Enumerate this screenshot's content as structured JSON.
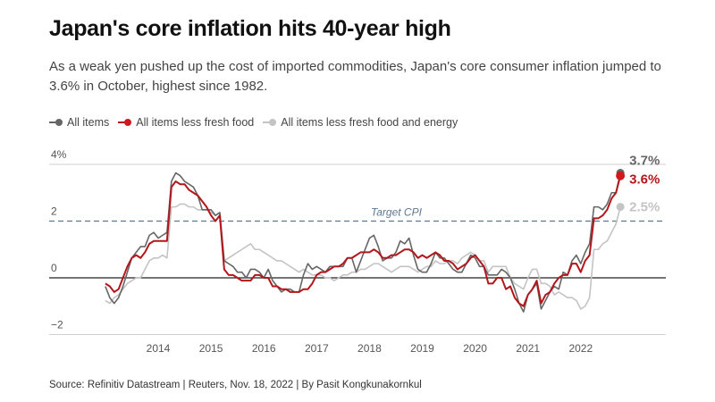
{
  "header": {
    "title": "Japan's core inflation hits 40-year high",
    "subtitle": "As a weak yen pushed up the cost of imported commodities, Japan's core consumer inflation jumped to 3.6% in October, highest since 1982."
  },
  "footer": {
    "source": "Source: Refinitiv Datastream | Reuters, Nov. 18, 2022 | By Pasit Kongkunakornkul"
  },
  "chart_data": {
    "type": "line",
    "title": "Japan's core inflation hits 40-year high",
    "xlabel": "",
    "ylabel": "",
    "x_start": "2013-01",
    "x_end": "2022-10",
    "x_frequency": "monthly",
    "xlim": [
      2013,
      2023.4
    ],
    "ylim": [
      -2,
      4
    ],
    "grid": true,
    "legend_position": "top-left",
    "y_ticks": [
      {
        "value": 4,
        "label": "4%"
      },
      {
        "value": 2,
        "label": "2"
      },
      {
        "value": 0,
        "label": "0"
      },
      {
        "value": -2,
        "label": "−2"
      }
    ],
    "x_ticks": [
      "2014",
      "2015",
      "2016",
      "2017",
      "2018",
      "2019",
      "2020",
      "2021",
      "2022"
    ],
    "reference_line": {
      "value": 2,
      "label": "Target CPI",
      "color": "#5d7891"
    },
    "series": [
      {
        "name": "All items less fresh food and energy",
        "color": "#c4c4c4",
        "end_label": "2.5%",
        "values": [
          -0.8,
          -0.9,
          -0.7,
          -0.6,
          -0.4,
          -0.2,
          -0.1,
          0.0,
          0.0,
          0.3,
          0.6,
          0.7,
          0.7,
          0.8,
          0.7,
          2.5,
          2.5,
          2.6,
          2.6,
          2.5,
          2.5,
          2.4,
          2.4,
          2.4,
          2.3,
          2.2,
          2.3,
          0.6,
          0.7,
          0.8,
          0.9,
          1.0,
          1.1,
          1.2,
          1.0,
          1.0,
          0.9,
          0.8,
          0.7,
          0.6,
          0.6,
          0.5,
          0.4,
          0.3,
          0.2,
          0.3,
          0.2,
          0.1,
          0.1,
          0.1,
          0.0,
          0.0,
          -0.1,
          0.0,
          0.1,
          0.1,
          0.2,
          0.2,
          0.3,
          0.3,
          0.4,
          0.5,
          0.5,
          0.4,
          0.3,
          0.2,
          0.3,
          0.4,
          0.4,
          0.4,
          0.3,
          0.2,
          0.3,
          0.4,
          0.4,
          0.6,
          0.5,
          0.5,
          0.6,
          0.6,
          0.5,
          0.7,
          0.8,
          0.9,
          0.8,
          0.6,
          0.6,
          0.2,
          0.4,
          0.4,
          0.4,
          0.4,
          0.0,
          -0.2,
          -0.3,
          -0.4,
          0.0,
          0.3,
          0.3,
          -0.2,
          -0.2,
          -0.3,
          -0.6,
          -0.5,
          -0.6,
          -0.7,
          -0.7,
          -0.8,
          -1.1,
          -1.0,
          -0.7,
          1.0,
          1.0,
          1.2,
          1.3,
          1.6,
          1.9,
          2.5
        ]
      },
      {
        "name": "All items",
        "color": "#666666",
        "end_label": "3.7%",
        "values": [
          -0.3,
          -0.7,
          -0.9,
          -0.7,
          -0.3,
          0.2,
          0.7,
          0.9,
          1.1,
          1.1,
          1.5,
          1.6,
          1.4,
          1.5,
          1.6,
          3.4,
          3.7,
          3.6,
          3.4,
          3.3,
          3.2,
          2.9,
          2.4,
          2.4,
          2.4,
          2.2,
          2.3,
          0.6,
          0.5,
          0.4,
          0.2,
          0.2,
          0.0,
          0.3,
          0.3,
          0.2,
          0.0,
          0.3,
          -0.1,
          -0.3,
          -0.5,
          -0.4,
          -0.4,
          -0.5,
          -0.5,
          0.1,
          0.5,
          0.3,
          0.4,
          0.3,
          0.2,
          0.4,
          0.4,
          0.4,
          0.4,
          0.7,
          0.7,
          0.2,
          0.6,
          1.0,
          1.4,
          1.5,
          1.1,
          0.6,
          0.7,
          0.7,
          0.9,
          1.3,
          1.2,
          1.4,
          0.8,
          0.3,
          0.2,
          0.2,
          0.5,
          0.9,
          0.7,
          0.7,
          0.5,
          0.3,
          0.2,
          0.2,
          0.5,
          0.8,
          0.7,
          0.4,
          0.4,
          0.1,
          0.1,
          0.1,
          0.3,
          0.2,
          0.0,
          -0.4,
          -0.9,
          -1.2,
          -0.6,
          -0.4,
          -0.2,
          -1.1,
          -0.8,
          -0.5,
          -0.3,
          -0.4,
          0.2,
          0.1,
          0.6,
          0.8,
          0.5,
          0.9,
          1.2,
          2.5,
          2.5,
          2.4,
          2.6,
          3.0,
          3.0,
          3.7
        ]
      },
      {
        "name": "All items less fresh food",
        "color": "#b3161b",
        "end_label": "3.6%",
        "values": [
          -0.2,
          -0.3,
          -0.5,
          -0.4,
          0.0,
          0.4,
          0.7,
          0.8,
          0.7,
          0.9,
          1.2,
          1.3,
          1.3,
          1.3,
          1.3,
          3.2,
          3.4,
          3.3,
          3.3,
          3.1,
          3.0,
          2.9,
          2.7,
          2.5,
          2.2,
          2.0,
          2.2,
          0.3,
          0.1,
          0.1,
          0.0,
          -0.1,
          -0.1,
          -0.1,
          0.1,
          0.1,
          0.0,
          0.0,
          -0.3,
          -0.3,
          -0.4,
          -0.4,
          -0.5,
          -0.5,
          -0.5,
          -0.4,
          -0.4,
          -0.2,
          0.1,
          0.2,
          0.2,
          0.3,
          0.4,
          0.4,
          0.5,
          0.7,
          0.7,
          0.8,
          0.9,
          0.9,
          0.9,
          1.0,
          0.9,
          0.7,
          0.7,
          0.8,
          0.8,
          0.9,
          1.0,
          1.0,
          0.9,
          0.7,
          0.8,
          0.7,
          0.8,
          0.9,
          0.8,
          0.6,
          0.6,
          0.5,
          0.3,
          0.4,
          0.5,
          0.7,
          0.8,
          0.6,
          0.4,
          -0.2,
          -0.2,
          0.0,
          0.0,
          -0.4,
          -0.3,
          -0.7,
          -0.9,
          -1.0,
          -0.6,
          -0.4,
          -0.1,
          -0.9,
          -0.6,
          -0.5,
          -0.2,
          0.0,
          0.1,
          0.1,
          0.5,
          0.5,
          0.2,
          0.6,
          0.8,
          2.1,
          2.1,
          2.2,
          2.4,
          2.8,
          3.0,
          3.6
        ]
      }
    ]
  }
}
